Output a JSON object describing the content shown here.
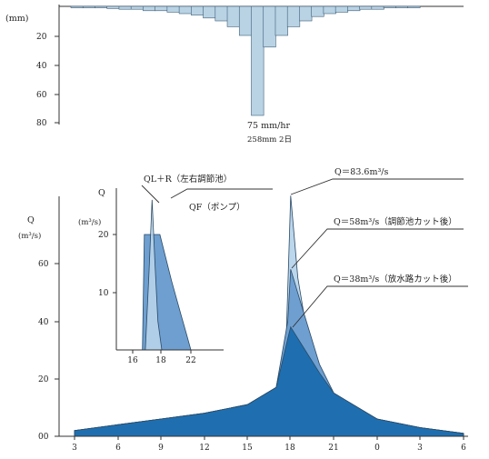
{
  "colors": {
    "rain": "#b9d3e4",
    "rain_edge": "#3f5f78",
    "dark_blue": "#1f6fb0",
    "mid_blue": "#6e9fd0",
    "light_blue": "#bcd6ec",
    "axis": "#333333"
  },
  "rain_chart": {
    "unit": "(mm)",
    "y_ticks": [
      "20",
      "40",
      "60",
      "80"
    ],
    "peak_label": "75 mm/hr",
    "total_label": "258mm 2日"
  },
  "main_chart": {
    "ylabel": "Q",
    "yunit": "(m³/s)",
    "y_ticks": [
      "00",
      "20",
      "40",
      "60"
    ],
    "x_ticks": [
      "3",
      "6",
      "9",
      "12",
      "15",
      "18",
      "21",
      "0",
      "3",
      "6"
    ],
    "annotations": {
      "peak_a": "Q＝83.6m³/s",
      "peak_b": "Q＝58m³/s（調節池カット後）",
      "peak_c": "Q＝38m³/s（放水路カット後）"
    }
  },
  "inset_chart": {
    "ylabel": "Q",
    "yunit": "(m³/s)",
    "y_ticks": [
      "10",
      "20"
    ],
    "x_ticks": [
      "16",
      "18",
      "22"
    ],
    "label_ql": "QL＋R（左右調節池）",
    "label_qf": "QF（ポンプ）"
  },
  "chart_data": [
    {
      "type": "bar",
      "title": "",
      "ylabel": "(mm)",
      "ylim": [
        0,
        80
      ],
      "y_reversed": true,
      "values": [
        1,
        1,
        1,
        1.5,
        2,
        2,
        3,
        3,
        4,
        5,
        6,
        8,
        10,
        14,
        20,
        75,
        28,
        20,
        14,
        10,
        7,
        5,
        4,
        3,
        2,
        2,
        1,
        1,
        1,
        0
      ],
      "annotations": [
        "75 mm/hr",
        "258mm 2日"
      ]
    },
    {
      "type": "area",
      "ylabel": "Q (m³/s)",
      "ylim": [
        0,
        85
      ],
      "x_tick_labels": [
        "3",
        "6",
        "9",
        "12",
        "15",
        "18",
        "21",
        "0",
        "3",
        "6"
      ],
      "x_hours": [
        3,
        6,
        9,
        12,
        15,
        18,
        21,
        24,
        27,
        30
      ],
      "series": [
        {
          "name": "Q＝83.6m³/s",
          "x": [
            3,
            6,
            9,
            12,
            15,
            17,
            17.7,
            18,
            18.5,
            19.5,
            21,
            24,
            27,
            30
          ],
          "y": [
            2,
            4,
            6,
            8,
            11,
            17,
            35,
            83.6,
            55,
            25,
            14,
            6,
            3,
            1
          ]
        },
        {
          "name": "Q＝58m³/s（調節池カット後）",
          "x": [
            3,
            6,
            9,
            12,
            15,
            17,
            17.8,
            18,
            18.6,
            20,
            21,
            24,
            27,
            30
          ],
          "y": [
            2,
            4,
            6,
            8,
            11,
            17,
            40,
            58,
            48,
            25,
            15,
            6,
            3,
            1
          ]
        },
        {
          "name": "Q＝38m³/s（放水路カット後）",
          "x": [
            3,
            6,
            9,
            12,
            15,
            17,
            17.9,
            18,
            19,
            20,
            21,
            24,
            27,
            30
          ],
          "y": [
            2,
            4,
            6,
            8,
            11,
            17,
            36,
            38,
            30,
            22,
            15,
            6,
            3,
            1
          ]
        }
      ]
    },
    {
      "type": "area",
      "ylabel": "Q (m³/s)",
      "ylim": [
        0,
        27
      ],
      "x_tick_labels": [
        "16",
        "18",
        "22"
      ],
      "series": [
        {
          "name": "QL＋R（左右調節池）",
          "x": [
            17.3,
            17.7,
            18.0,
            18.3,
            18.6,
            19.0
          ],
          "y": [
            0,
            14,
            26,
            15,
            5,
            0
          ]
        },
        {
          "name": "QF（ポンプ）",
          "x": [
            17.0,
            17.2,
            18.8,
            19.4,
            20.0,
            21.0,
            21.5,
            22.0
          ],
          "y": [
            0,
            20,
            20,
            16,
            12,
            6,
            3,
            0
          ]
        }
      ]
    }
  ]
}
